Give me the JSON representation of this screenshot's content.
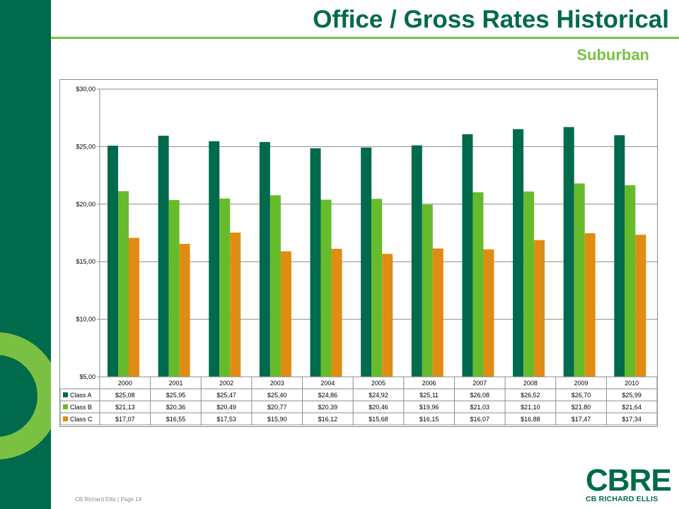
{
  "page": {
    "title": "Office / Gross Rates Historical",
    "subtitle": "Suburban",
    "footer": "CB Richard Ellis  |  Page 14",
    "logo_main": "CBRE",
    "logo_sub": "CB RICHARD ELLIS"
  },
  "colors": {
    "brand_dark_green": "#006a4d",
    "brand_light_green": "#7ac143",
    "series": [
      "#006a4d",
      "#66bb2a",
      "#e08c12"
    ]
  },
  "chart_data": {
    "type": "bar",
    "title": "",
    "xlabel": "",
    "ylabel": "",
    "ylim": [
      5,
      30
    ],
    "yticks": [
      5,
      10,
      15,
      20,
      25,
      30
    ],
    "ytick_labels": [
      "$5,00",
      "$10,00",
      "$15,00",
      "$20,00",
      "$25,00",
      "$30,00"
    ],
    "grid": true,
    "legend": "data-table",
    "categories": [
      "2000",
      "2001",
      "2002",
      "2003",
      "2004",
      "2005",
      "2006",
      "2007",
      "2008",
      "2009",
      "2010"
    ],
    "series": [
      {
        "name": "Class A",
        "values": [
          25.08,
          25.95,
          25.47,
          25.4,
          24.86,
          24.92,
          25.11,
          26.08,
          26.52,
          26.7,
          25.99
        ],
        "labels": [
          "$25,08",
          "$25,95",
          "$25,47",
          "$25,40",
          "$24,86",
          "$24,92",
          "$25,11",
          "$26,08",
          "$26,52",
          "$26,70",
          "$25,99"
        ]
      },
      {
        "name": "Class B",
        "values": [
          21.13,
          20.36,
          20.49,
          20.77,
          20.39,
          20.46,
          19.96,
          21.03,
          21.1,
          21.8,
          21.64
        ],
        "labels": [
          "$21,13",
          "$20,36",
          "$20,49",
          "$20,77",
          "$20,39",
          "$20,46",
          "$19,96",
          "$21,03",
          "$21,10",
          "$21,80",
          "$21,64"
        ]
      },
      {
        "name": "Class C",
        "values": [
          17.07,
          16.55,
          17.53,
          15.9,
          16.12,
          15.68,
          16.15,
          16.07,
          16.88,
          17.47,
          17.34
        ],
        "labels": [
          "$17,07",
          "$16,55",
          "$17,53",
          "$15,90",
          "$16,12",
          "$15,68",
          "$16,15",
          "$16,07",
          "$16,88",
          "$17,47",
          "$17,34"
        ]
      }
    ]
  }
}
